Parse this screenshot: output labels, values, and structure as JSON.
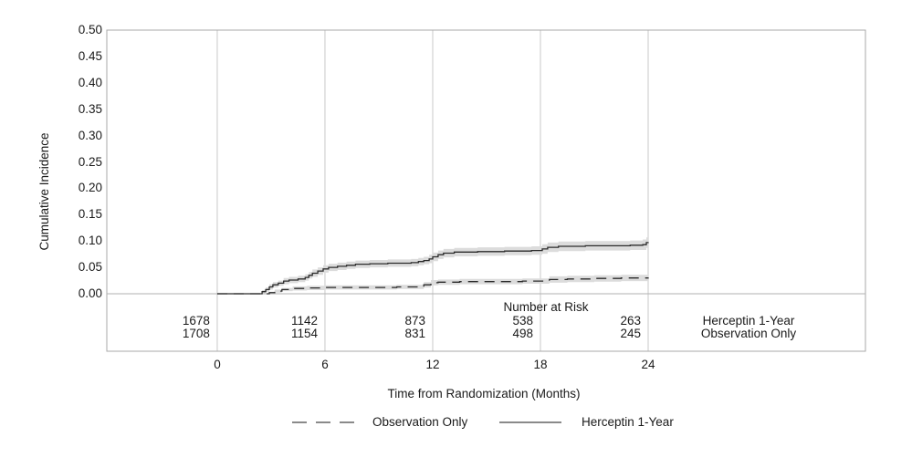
{
  "chart_data": {
    "type": "line",
    "title": "",
    "xlabel": "Time from Randomization (Months)",
    "ylabel": "Cumulative Incidence",
    "xlim": [
      -6.15,
      36.1
    ],
    "ylim": [
      0,
      0.5
    ],
    "xtick_labels": [
      "0",
      "6",
      "12",
      "18",
      "24"
    ],
    "ytick_labels": [
      "0.50",
      "0.45",
      "0.40",
      "0.35",
      "0.30",
      "0.25",
      "0.20",
      "0.15",
      "0.10",
      "0.05",
      "0.00"
    ],
    "grid": "vertical-at-xticks",
    "legend_position": "bottom",
    "series": [
      {
        "name": "Herceptin 1-Year",
        "style": "solid",
        "comment": "points are [month, cumulative_incidence, confidence_band_halfwidth], step-after",
        "points": [
          [
            0,
            0,
            0
          ],
          [
            2.3,
            0,
            0
          ],
          [
            2.5,
            0.004,
            0.003
          ],
          [
            2.7,
            0.008,
            0.004
          ],
          [
            2.9,
            0.013,
            0.005
          ],
          [
            3.1,
            0.017,
            0.005
          ],
          [
            3.4,
            0.02,
            0.005
          ],
          [
            3.7,
            0.024,
            0.006
          ],
          [
            4.0,
            0.026,
            0.006
          ],
          [
            4.5,
            0.028,
            0.006
          ],
          [
            4.9,
            0.031,
            0.006
          ],
          [
            5.1,
            0.035,
            0.006
          ],
          [
            5.3,
            0.039,
            0.007
          ],
          [
            5.6,
            0.043,
            0.007
          ],
          [
            5.9,
            0.047,
            0.007
          ],
          [
            6.2,
            0.05,
            0.007
          ],
          [
            6.7,
            0.052,
            0.007
          ],
          [
            7.2,
            0.054,
            0.007
          ],
          [
            7.7,
            0.056,
            0.007
          ],
          [
            8.5,
            0.057,
            0.007
          ],
          [
            9.5,
            0.058,
            0.007
          ],
          [
            10.8,
            0.059,
            0.007
          ],
          [
            11.2,
            0.061,
            0.007
          ],
          [
            11.5,
            0.063,
            0.007
          ],
          [
            11.8,
            0.066,
            0.008
          ],
          [
            12.0,
            0.07,
            0.008
          ],
          [
            12.3,
            0.074,
            0.008
          ],
          [
            12.6,
            0.077,
            0.008
          ],
          [
            13.2,
            0.079,
            0.008
          ],
          [
            14.5,
            0.08,
            0.008
          ],
          [
            16.0,
            0.081,
            0.008
          ],
          [
            17.5,
            0.082,
            0.008
          ],
          [
            18.1,
            0.085,
            0.009
          ],
          [
            18.4,
            0.088,
            0.009
          ],
          [
            19.0,
            0.09,
            0.009
          ],
          [
            20.5,
            0.091,
            0.009
          ],
          [
            22.0,
            0.091,
            0.009
          ],
          [
            23.0,
            0.092,
            0.009
          ],
          [
            23.7,
            0.093,
            0.01
          ],
          [
            23.9,
            0.097,
            0.01
          ],
          [
            24,
            0.098,
            0.01
          ]
        ]
      },
      {
        "name": "Observation Only",
        "style": "dashed",
        "comment": "points are [month, cumulative_incidence, confidence_band_halfwidth], step-after",
        "points": [
          [
            0,
            0,
            0
          ],
          [
            2.6,
            0,
            0
          ],
          [
            2.9,
            0.002,
            0.002
          ],
          [
            3.2,
            0.005,
            0.003
          ],
          [
            3.6,
            0.008,
            0.003
          ],
          [
            4.2,
            0.01,
            0.004
          ],
          [
            5.0,
            0.011,
            0.004
          ],
          [
            6.0,
            0.012,
            0.004
          ],
          [
            8.0,
            0.012,
            0.004
          ],
          [
            10.0,
            0.013,
            0.004
          ],
          [
            11.2,
            0.013,
            0.004
          ],
          [
            11.5,
            0.017,
            0.005
          ],
          [
            11.9,
            0.021,
            0.005
          ],
          [
            12.3,
            0.022,
            0.005
          ],
          [
            13.5,
            0.023,
            0.005
          ],
          [
            15.5,
            0.023,
            0.005
          ],
          [
            17.0,
            0.024,
            0.005
          ],
          [
            18.2,
            0.024,
            0.005
          ],
          [
            18.5,
            0.027,
            0.006
          ],
          [
            19.5,
            0.028,
            0.006
          ],
          [
            21.0,
            0.029,
            0.006
          ],
          [
            22.5,
            0.03,
            0.006
          ],
          [
            24,
            0.031,
            0.006
          ]
        ]
      }
    ]
  },
  "risk_table": {
    "title": "Number at Risk",
    "columns": [
      "0",
      "6",
      "12",
      "18",
      "24"
    ],
    "rows": [
      {
        "label": "Herceptin 1-Year",
        "values": [
          "1678",
          "1142",
          "873",
          "538",
          "263"
        ]
      },
      {
        "label": "Observation Only",
        "values": [
          "1708",
          "1154",
          "831",
          "498",
          "245"
        ]
      }
    ]
  },
  "legend": {
    "items": [
      {
        "label": "Observation Only",
        "style": "dashed"
      },
      {
        "label": "Herceptin 1-Year",
        "style": "solid"
      }
    ]
  },
  "colors": {
    "curve": "#2b2b2b",
    "band": "#dcdcdc",
    "gridline": "#c9c9c9",
    "frame": "#a8a8a8",
    "zero_line": "#b2b2b2",
    "legend_sample": "#8a8a8a",
    "text": "#1a1a1a"
  }
}
